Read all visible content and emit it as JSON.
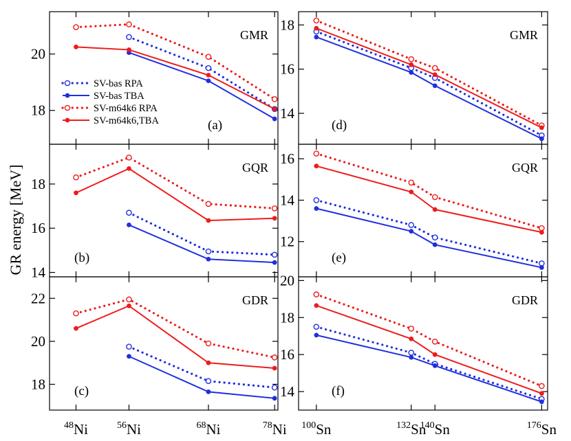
{
  "ylabel": "GR energy [MeV]",
  "colors": {
    "blue": "#1f2fe0",
    "red": "#ee1c1c"
  },
  "legend": [
    {
      "label": "SV-bas RPA",
      "color": "blue",
      "style": "dotted"
    },
    {
      "label": "SV-bas TBA",
      "color": "blue",
      "style": "solid"
    },
    {
      "label": "SV-m64k6 RPA",
      "color": "red",
      "style": "dotted"
    },
    {
      "label": "SV-m64k6,TBA",
      "color": "red",
      "style": "solid"
    }
  ],
  "xticks": {
    "ni": [
      {
        "x": 48,
        "mass": "48",
        "el": "Ni"
      },
      {
        "x": 56,
        "mass": "56",
        "el": "Ni"
      },
      {
        "x": 68,
        "mass": "68",
        "el": "Ni"
      },
      {
        "x": 78,
        "mass": "78",
        "el": "Ni"
      }
    ],
    "sn": [
      {
        "x": 100,
        "mass": "100",
        "el": "Sn"
      },
      {
        "x": 132,
        "mass": "132",
        "el": "Sn"
      },
      {
        "x": 140,
        "mass": "140",
        "el": "Sn"
      },
      {
        "x": 176,
        "mass": "176",
        "el": "Sn"
      }
    ]
  },
  "chart_data": [
    {
      "type": "line",
      "panel": "(a)",
      "resonance": "GMR",
      "column": "ni",
      "xlim": [
        44,
        78.5
      ],
      "ylim": [
        16.8,
        21.5
      ],
      "yticks": [
        18,
        20
      ],
      "series": [
        {
          "name": "SV-bas RPA",
          "x": [
            56,
            68,
            78
          ],
          "values": [
            20.6,
            19.5,
            18.05
          ]
        },
        {
          "name": "SV-bas TBA",
          "x": [
            56,
            68,
            78
          ],
          "values": [
            20.05,
            19.05,
            17.7
          ]
        },
        {
          "name": "SV-m64k6 RPA",
          "x": [
            48,
            56,
            68,
            78
          ],
          "values": [
            20.95,
            21.05,
            19.9,
            18.4
          ]
        },
        {
          "name": "SV-m64k6,TBA",
          "x": [
            48,
            56,
            68,
            78
          ],
          "values": [
            20.25,
            20.15,
            19.25,
            18.05
          ]
        }
      ]
    },
    {
      "type": "line",
      "panel": "(b)",
      "resonance": "GQR",
      "column": "ni",
      "xlim": [
        44,
        78.5
      ],
      "ylim": [
        13.8,
        19.8
      ],
      "yticks": [
        14,
        16,
        18
      ],
      "series": [
        {
          "name": "SV-bas RPA",
          "x": [
            56,
            68,
            78
          ],
          "values": [
            16.7,
            14.95,
            14.8
          ]
        },
        {
          "name": "SV-bas TBA",
          "x": [
            56,
            68,
            78
          ],
          "values": [
            16.15,
            14.6,
            14.45
          ]
        },
        {
          "name": "SV-m64k6 RPA",
          "x": [
            48,
            56,
            68,
            78
          ],
          "values": [
            18.3,
            19.2,
            17.1,
            16.9
          ]
        },
        {
          "name": "SV-m64k6,TBA",
          "x": [
            48,
            56,
            68,
            78
          ],
          "values": [
            17.6,
            18.7,
            16.35,
            16.45
          ]
        }
      ]
    },
    {
      "type": "line",
      "panel": "(c)",
      "resonance": "GDR",
      "column": "ni",
      "xlim": [
        44,
        78.5
      ],
      "ylim": [
        16.8,
        23.0
      ],
      "yticks": [
        18,
        20,
        22
      ],
      "series": [
        {
          "name": "SV-bas RPA",
          "x": [
            56,
            68,
            78
          ],
          "values": [
            19.75,
            18.15,
            17.85
          ]
        },
        {
          "name": "SV-bas TBA",
          "x": [
            56,
            68,
            78
          ],
          "values": [
            19.3,
            17.65,
            17.35
          ]
        },
        {
          "name": "SV-m64k6 RPA",
          "x": [
            48,
            56,
            68,
            78
          ],
          "values": [
            21.3,
            21.95,
            19.9,
            19.25
          ]
        },
        {
          "name": "SV-m64k6,TBA",
          "x": [
            48,
            56,
            68,
            78
          ],
          "values": [
            20.6,
            21.65,
            19.0,
            18.75
          ]
        }
      ]
    },
    {
      "type": "line",
      "panel": "(d)",
      "resonance": "GMR",
      "column": "sn",
      "xlim": [
        94,
        178
      ],
      "ylim": [
        12.6,
        18.6
      ],
      "yticks": [
        14,
        16,
        18
      ],
      "series": [
        {
          "name": "SV-bas RPA",
          "x": [
            100,
            132,
            140,
            176
          ],
          "values": [
            17.7,
            16.05,
            15.6,
            13.0
          ]
        },
        {
          "name": "SV-bas TBA",
          "x": [
            100,
            132,
            140,
            176
          ],
          "values": [
            17.45,
            15.85,
            15.25,
            12.85
          ]
        },
        {
          "name": "SV-m64k6 RPA",
          "x": [
            100,
            132,
            140,
            176
          ],
          "values": [
            18.2,
            16.45,
            16.05,
            13.45
          ]
        },
        {
          "name": "SV-m64k6,TBA",
          "x": [
            100,
            132,
            140,
            176
          ],
          "values": [
            17.85,
            16.2,
            15.75,
            13.35
          ]
        }
      ]
    },
    {
      "type": "line",
      "panel": "(e)",
      "resonance": "GQR",
      "column": "sn",
      "xlim": [
        94,
        178
      ],
      "ylim": [
        10.3,
        16.7
      ],
      "yticks": [
        12,
        14,
        16
      ],
      "series": [
        {
          "name": "SV-bas RPA",
          "x": [
            100,
            132,
            140,
            176
          ],
          "values": [
            14.0,
            12.8,
            12.2,
            10.95
          ]
        },
        {
          "name": "SV-bas TBA",
          "x": [
            100,
            132,
            140,
            176
          ],
          "values": [
            13.6,
            12.5,
            11.85,
            10.75
          ]
        },
        {
          "name": "SV-m64k6 RPA",
          "x": [
            100,
            132,
            140,
            176
          ],
          "values": [
            16.25,
            14.85,
            14.15,
            12.65
          ]
        },
        {
          "name": "SV-m64k6,TBA",
          "x": [
            100,
            132,
            140,
            176
          ],
          "values": [
            15.65,
            14.4,
            13.55,
            12.45
          ]
        }
      ]
    },
    {
      "type": "line",
      "panel": "(f)",
      "resonance": "GDR",
      "column": "sn",
      "xlim": [
        94,
        178
      ],
      "ylim": [
        13.0,
        20.2
      ],
      "yticks": [
        14,
        16,
        18,
        20
      ],
      "series": [
        {
          "name": "SV-bas RPA",
          "x": [
            100,
            132,
            140,
            176
          ],
          "values": [
            17.5,
            16.1,
            15.5,
            13.6
          ]
        },
        {
          "name": "SV-bas TBA",
          "x": [
            100,
            132,
            140,
            176
          ],
          "values": [
            17.05,
            15.85,
            15.4,
            13.45
          ]
        },
        {
          "name": "SV-m64k6 RPA",
          "x": [
            100,
            132,
            140,
            176
          ],
          "values": [
            19.25,
            17.4,
            16.7,
            14.3
          ]
        },
        {
          "name": "SV-m64k6,TBA",
          "x": [
            100,
            132,
            140,
            176
          ],
          "values": [
            18.65,
            16.85,
            16.0,
            13.9
          ]
        }
      ]
    }
  ]
}
